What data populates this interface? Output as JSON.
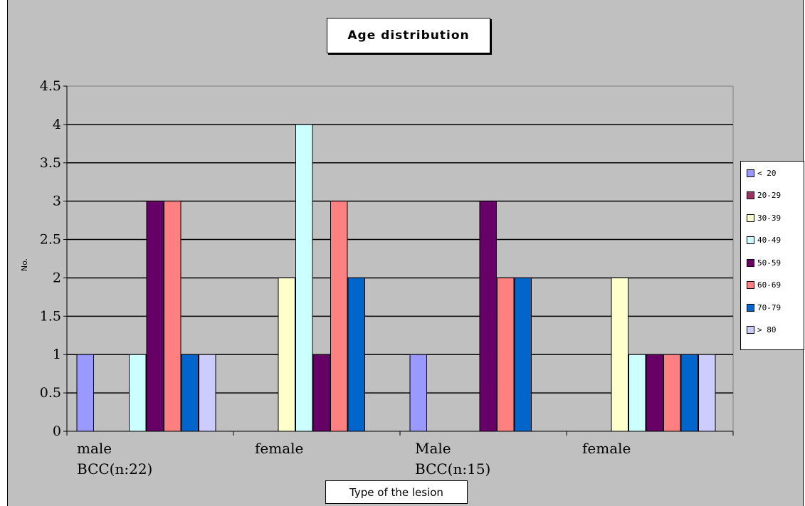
{
  "chart_data": {
    "type": "bar",
    "title": "Age distribution",
    "xlabel": "Type of the lesion",
    "ylabel": "No.",
    "ylim": [
      0,
      4.5
    ],
    "yticks": [
      "0",
      "0.5",
      "1",
      "1.5",
      "2",
      "2.5",
      "3",
      "3.5",
      "4",
      "4.5"
    ],
    "categories": [
      [
        "male",
        "BCC(n:22)"
      ],
      [
        "female"
      ],
      [
        "Male",
        "BCC(n:15)"
      ],
      [
        "female"
      ]
    ],
    "series": [
      {
        "name": "< 20",
        "color": "#9999ff",
        "values": [
          1,
          0,
          1,
          0
        ]
      },
      {
        "name": "20-29",
        "color": "#993366",
        "values": [
          0,
          0,
          0,
          0
        ]
      },
      {
        "name": "30-39",
        "color": "#ffffcc",
        "values": [
          0,
          2,
          0,
          2
        ]
      },
      {
        "name": "40-49",
        "color": "#ccffff",
        "values": [
          1,
          4,
          0,
          1
        ]
      },
      {
        "name": "50-59",
        "color": "#660066",
        "values": [
          3,
          1,
          3,
          1
        ]
      },
      {
        "name": "60-69",
        "color": "#ff8080",
        "values": [
          3,
          3,
          2,
          1
        ]
      },
      {
        "name": "70-79",
        "color": "#0066cc",
        "values": [
          1,
          2,
          2,
          1
        ]
      },
      {
        "name": "> 80",
        "color": "#ccccff",
        "values": [
          1,
          0,
          0,
          1
        ]
      }
    ],
    "grid": true,
    "legend_position": "right"
  }
}
